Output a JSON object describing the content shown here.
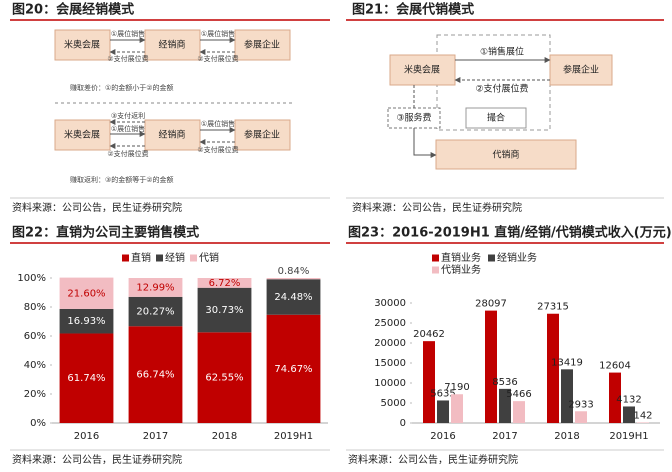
{
  "diagrams": [
    {
      "title": "图20：会展经销模式",
      "top": {
        "nodes": [
          "米奥会展",
          "经销商",
          "参展企业"
        ],
        "edges": [
          "①展位销售",
          "②支付展位费",
          "①展位销售",
          "②支付展位费"
        ],
        "note": "赚取差价：①的金额小于②的金额"
      },
      "bottom": {
        "nodes": [
          "米奥会展",
          "经销商",
          "参展企业"
        ],
        "edges": [
          "③支付返利",
          "①展位销售",
          "②支付展位费",
          "①展位销售",
          "②支付展位费"
        ],
        "note": "赚取返利：③的金额等于②的金额"
      },
      "source": "资料来源：公司公告，民生证券研究院"
    },
    {
      "title": "图21：会展代销模式",
      "nodes": [
        "米奥会展",
        "参展企业",
        "代销商"
      ],
      "edges": [
        "①销售展位",
        "②支付展位费",
        "③服务费",
        "撮合"
      ],
      "source": "资料来源：公司公告，民生证券研究院"
    }
  ],
  "chart_data": [
    {
      "type": "bar",
      "stacked": true,
      "title": "图22：直销为公司主要销售模式",
      "categories": [
        "2016",
        "2017",
        "2018",
        "2019H1"
      ],
      "series": [
        {
          "name": "直销",
          "color": "#c00000",
          "values": [
            61.74,
            66.74,
            62.55,
            74.67
          ],
          "value_labels": [
            "61.74%",
            "66.74%",
            "62.55%",
            "74.67%"
          ]
        },
        {
          "name": "经销",
          "color": "#404040",
          "values": [
            16.93,
            20.27,
            30.73,
            24.48
          ],
          "value_labels": [
            "16.93%",
            "20.27%",
            "30.73%",
            "24.48%"
          ]
        },
        {
          "name": "代销",
          "color": "#f2bcc2",
          "values": [
            21.6,
            12.99,
            6.72,
            0.84
          ],
          "value_labels": [
            "21.60%",
            "12.99%",
            "6.72%",
            "0.84%"
          ]
        }
      ],
      "ylim": [
        0,
        100
      ],
      "yticks": [
        {
          "value": 0,
          "label": "0%"
        },
        {
          "value": 20,
          "label": "20%"
        },
        {
          "value": 40,
          "label": "40%"
        },
        {
          "value": 60,
          "label": "60%"
        },
        {
          "value": 80,
          "label": "80%"
        },
        {
          "value": 100,
          "label": "100%"
        }
      ],
      "source": "资料来源：公司公告，民生证券研究院"
    },
    {
      "type": "bar",
      "stacked": false,
      "title": "图23：2016-2019H1 直销/经销/代销模式收入(万元)",
      "categories": [
        "2016",
        "2017",
        "2018",
        "2019H1"
      ],
      "series": [
        {
          "name": "直销业务",
          "color": "#c00000",
          "values": [
            20462,
            28097,
            27315,
            12604
          ]
        },
        {
          "name": "经销业务",
          "color": "#404040",
          "values": [
            5635,
            8536,
            13419,
            4132
          ]
        },
        {
          "name": "代销业务",
          "color": "#f2bcc2",
          "values": [
            7190,
            5466,
            2933,
            142
          ]
        }
      ],
      "ylim": [
        0,
        30000
      ],
      "yticks": [
        0,
        5000,
        10000,
        15000,
        20000,
        25000,
        30000
      ],
      "source": "资料来源：公司公告，民生证券研究院"
    }
  ]
}
